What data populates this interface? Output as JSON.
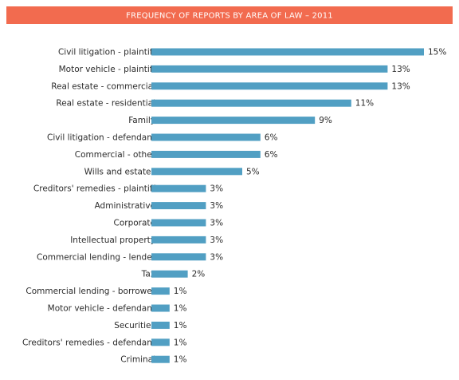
{
  "chart_data": {
    "type": "bar",
    "title": "FREQUENCY OF REPORTS BY AREA OF LAW – 2011",
    "categories": [
      "Civil litigation - plaintiff",
      "Motor vehicle - plaintiff",
      "Real estate - commercial",
      "Real estate - residential",
      "Family",
      "Civil litigation - defendant",
      "Commercial - other",
      "Wills and estates",
      "Creditors' remedies - plaintiff",
      "Administrative",
      "Corporate",
      "Intellectual property",
      "Commercial lending - lender",
      "Tax",
      "Commercial lending - borrower",
      "Motor vehicle - defendant",
      "Securities",
      "Creditors' remedies - defendant",
      "Criminal"
    ],
    "values": [
      15,
      13,
      13,
      11,
      9,
      6,
      6,
      5,
      3,
      3,
      3,
      3,
      3,
      2,
      1,
      1,
      1,
      1,
      1
    ],
    "value_labels": [
      "15%",
      "13%",
      "13%",
      "11%",
      "9%",
      "6%",
      "6%",
      "5%",
      "3%",
      "3%",
      "3%",
      "3%",
      "3%",
      "2%",
      "1%",
      "1%",
      "1%",
      "1%",
      "1%"
    ],
    "color": "#519fc3"
  }
}
